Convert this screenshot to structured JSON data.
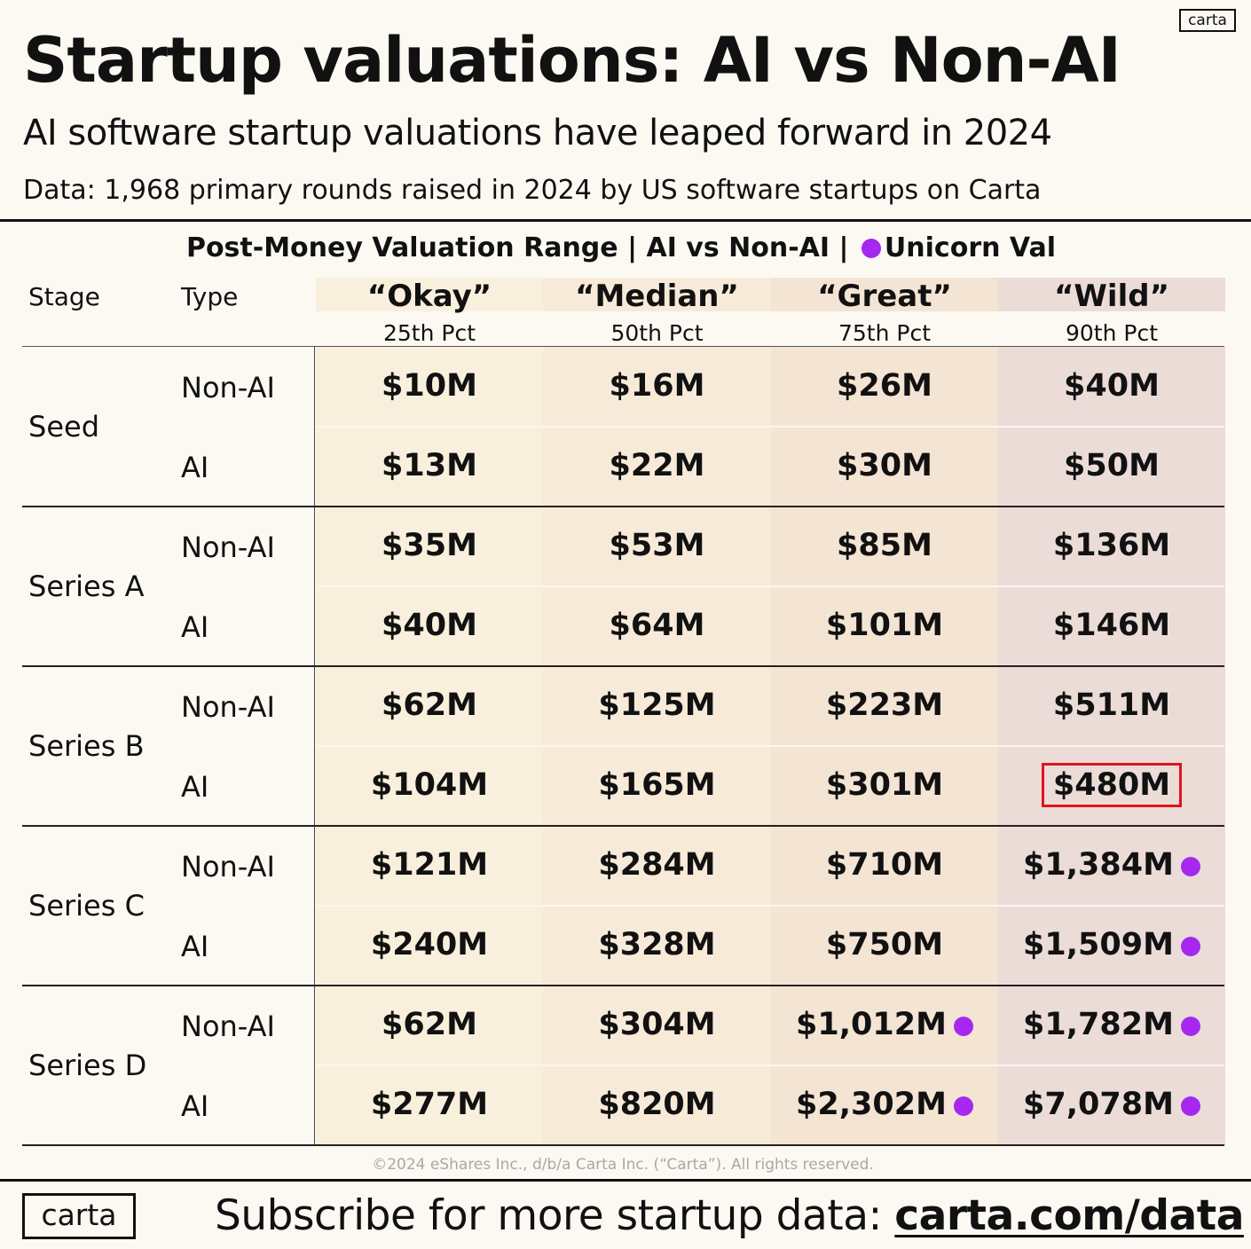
{
  "header": {
    "logo": "carta",
    "title": "Startup valuations: AI vs Non-AI",
    "subtitle": "AI software startup valuations have leaped forward in 2024",
    "source": "Data: 1,968 primary rounds raised in 2024 by US software startups on Carta"
  },
  "table": {
    "title_prefix": "Post-Money Valuation Range | AI vs Non-AI |",
    "title_suffix": "Unicorn Val",
    "stage_header": "Stage",
    "type_header": "Type"
  },
  "colors": {
    "unicorn": "#a628f0",
    "highlight": "#e0141e",
    "col_okay": "#f8f0dd",
    "col_median": "#f8ead8",
    "col_great": "#f4e4d4",
    "col_wild": "#ecdcd8"
  },
  "chart_data": {
    "type": "table",
    "columns": [
      {
        "label": "“Okay”",
        "sub": "25th Pct"
      },
      {
        "label": "“Median”",
        "sub": "50th Pct"
      },
      {
        "label": "“Great”",
        "sub": "75th Pct"
      },
      {
        "label": "“Wild”",
        "sub": "90th Pct"
      }
    ],
    "groups": [
      {
        "stage": "Seed",
        "rows": [
          {
            "type": "Non-AI",
            "values": [
              "$10M",
              "$16M",
              "$26M",
              "$40M"
            ],
            "unicorn": [
              false,
              false,
              false,
              false
            ]
          },
          {
            "type": "AI",
            "values": [
              "$13M",
              "$22M",
              "$30M",
              "$50M"
            ],
            "unicorn": [
              false,
              false,
              false,
              false
            ]
          }
        ]
      },
      {
        "stage": "Series A",
        "rows": [
          {
            "type": "Non-AI",
            "values": [
              "$35M",
              "$53M",
              "$85M",
              "$136M"
            ],
            "unicorn": [
              false,
              false,
              false,
              false
            ]
          },
          {
            "type": "AI",
            "values": [
              "$40M",
              "$64M",
              "$101M",
              "$146M"
            ],
            "unicorn": [
              false,
              false,
              false,
              false
            ]
          }
        ]
      },
      {
        "stage": "Series B",
        "rows": [
          {
            "type": "Non-AI",
            "values": [
              "$62M",
              "$125M",
              "$223M",
              "$511M"
            ],
            "unicorn": [
              false,
              false,
              false,
              false
            ]
          },
          {
            "type": "AI",
            "values": [
              "$104M",
              "$165M",
              "$301M",
              "$480M"
            ],
            "unicorn": [
              false,
              false,
              false,
              false
            ],
            "highlight": [
              false,
              false,
              false,
              true
            ]
          }
        ]
      },
      {
        "stage": "Series C",
        "rows": [
          {
            "type": "Non-AI",
            "values": [
              "$121M",
              "$284M",
              "$710M",
              "$1,384M"
            ],
            "unicorn": [
              false,
              false,
              false,
              true
            ]
          },
          {
            "type": "AI",
            "values": [
              "$240M",
              "$328M",
              "$750M",
              "$1,509M"
            ],
            "unicorn": [
              false,
              false,
              false,
              true
            ]
          }
        ]
      },
      {
        "stage": "Series D",
        "rows": [
          {
            "type": "Non-AI",
            "values": [
              "$62M",
              "$304M",
              "$1,012M",
              "$1,782M"
            ],
            "unicorn": [
              false,
              false,
              true,
              true
            ]
          },
          {
            "type": "AI",
            "values": [
              "$277M",
              "$820M",
              "$2,302M",
              "$7,078M"
            ],
            "unicorn": [
              false,
              false,
              true,
              true
            ]
          }
        ]
      }
    ]
  },
  "footer": {
    "copyright": "©2024 eShares Inc., d/b/a Carta Inc. (“Carta”). All rights reserved.",
    "logo": "carta",
    "cta": "Subscribe for more startup data:",
    "link": "carta.com/data"
  }
}
